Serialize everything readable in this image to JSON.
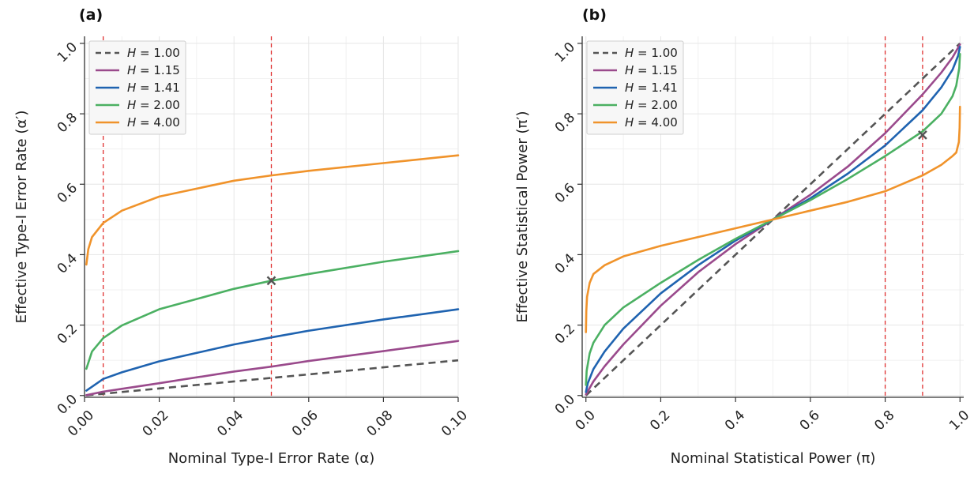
{
  "colors": {
    "H1": "#555555",
    "H115": "#9a4a8c",
    "H141": "#1f63b0",
    "H2": "#4bb062",
    "H4": "#f0932b",
    "refline": "#e03030",
    "marker": "#555555",
    "grid": "#e6e6e6"
  },
  "chart_data": [
    {
      "type": "line",
      "panel_label": "(a)",
      "xlabel": "Nominal Type-I Error Rate (α)",
      "ylabel": "Effective Type-I Error Rate (α′)",
      "xlim": [
        0.0,
        0.1
      ],
      "ylim": [
        -0.005,
        1.02
      ],
      "x_ticks": [
        0.0,
        0.02,
        0.04,
        0.06,
        0.08,
        0.1
      ],
      "x_tick_labels": [
        "0.00",
        "0.02",
        "0.04",
        "0.06",
        "0.08",
        "0.10"
      ],
      "y_ticks": [
        0.0,
        0.2,
        0.4,
        0.6,
        0.8,
        1.0
      ],
      "y_tick_labels": [
        "0.0",
        "0.2",
        "0.4",
        "0.6",
        "0.8",
        "1.0"
      ],
      "grid": true,
      "legend_position": "top-left",
      "series": [
        {
          "name": "H = 1.00",
          "h_value": "1.00",
          "style": "dashed",
          "color_key": "H1",
          "x": [
            0.0005,
            0.01,
            0.02,
            0.04,
            0.06,
            0.08,
            0.1
          ],
          "y": [
            0.0005,
            0.01,
            0.02,
            0.04,
            0.06,
            0.08,
            0.1
          ]
        },
        {
          "name": "H = 1.15",
          "h_value": "1.15",
          "style": "solid",
          "color_key": "H115",
          "x": [
            0.0005,
            0.005,
            0.01,
            0.02,
            0.04,
            0.05,
            0.06,
            0.08,
            0.1
          ],
          "y": [
            0.001,
            0.011,
            0.019,
            0.035,
            0.068,
            0.082,
            0.098,
            0.126,
            0.155
          ]
        },
        {
          "name": "H = 1.41",
          "h_value": "1.41",
          "style": "solid",
          "color_key": "H141",
          "x": [
            0.0005,
            0.005,
            0.01,
            0.02,
            0.04,
            0.05,
            0.06,
            0.08,
            0.1
          ],
          "y": [
            0.014,
            0.047,
            0.066,
            0.097,
            0.145,
            0.165,
            0.184,
            0.216,
            0.245
          ]
        },
        {
          "name": "H = 2.00",
          "h_value": "2.00",
          "style": "solid",
          "color_key": "H2",
          "x": [
            0.0005,
            0.002,
            0.005,
            0.01,
            0.02,
            0.04,
            0.05,
            0.06,
            0.08,
            0.1
          ],
          "y": [
            0.076,
            0.125,
            0.163,
            0.199,
            0.245,
            0.303,
            0.326,
            0.345,
            0.38,
            0.41
          ]
        },
        {
          "name": "H = 4.00",
          "h_value": "4.00",
          "style": "solid",
          "color_key": "H4",
          "x": [
            0.0005,
            0.001,
            0.002,
            0.005,
            0.01,
            0.02,
            0.04,
            0.05,
            0.06,
            0.08,
            0.1
          ],
          "y": [
            0.372,
            0.415,
            0.45,
            0.49,
            0.525,
            0.565,
            0.61,
            0.625,
            0.638,
            0.66,
            0.682
          ]
        }
      ],
      "reference_lines_x": [
        0.005,
        0.05
      ],
      "markers": [
        {
          "x": 0.05,
          "y": 0.326
        }
      ]
    },
    {
      "type": "line",
      "panel_label": "(b)",
      "xlabel": "Nominal Statistical Power (π)",
      "ylabel": "Effective Statistical Power (π′)",
      "xlim": [
        -0.01,
        1.01
      ],
      "ylim": [
        -0.005,
        1.02
      ],
      "x_ticks": [
        0.0,
        0.2,
        0.4,
        0.6,
        0.8,
        1.0
      ],
      "x_tick_labels": [
        "0.0",
        "0.2",
        "0.4",
        "0.6",
        "0.8",
        "1.0"
      ],
      "y_ticks": [
        0.0,
        0.2,
        0.4,
        0.6,
        0.8,
        1.0
      ],
      "y_tick_labels": [
        "0.0",
        "0.2",
        "0.4",
        "0.6",
        "0.8",
        "1.0"
      ],
      "grid": true,
      "legend_position": "top-left",
      "series": [
        {
          "name": "H = 1.00",
          "h_value": "1.00",
          "style": "dashed",
          "color_key": "H1",
          "x": [
            0.0,
            0.5,
            1.0
          ],
          "y": [
            0.0,
            0.5,
            1.0
          ]
        },
        {
          "name": "H = 1.15",
          "h_value": "1.15",
          "style": "solid",
          "color_key": "H115",
          "x": [
            0.0,
            0.02,
            0.05,
            0.1,
            0.2,
            0.3,
            0.4,
            0.5,
            0.6,
            0.7,
            0.8,
            0.9,
            0.95,
            0.98,
            1.0
          ],
          "y": [
            0.003,
            0.04,
            0.083,
            0.145,
            0.255,
            0.35,
            0.43,
            0.5,
            0.57,
            0.65,
            0.745,
            0.855,
            0.917,
            0.96,
            0.997
          ]
        },
        {
          "name": "H = 1.41",
          "h_value": "1.41",
          "style": "solid",
          "color_key": "H141",
          "x": [
            0.0,
            0.005,
            0.02,
            0.05,
            0.1,
            0.2,
            0.3,
            0.4,
            0.5,
            0.6,
            0.7,
            0.8,
            0.9,
            0.95,
            0.98,
            0.995,
            1.0
          ],
          "y": [
            0.01,
            0.035,
            0.075,
            0.125,
            0.19,
            0.29,
            0.37,
            0.44,
            0.5,
            0.56,
            0.63,
            0.71,
            0.81,
            0.875,
            0.925,
            0.965,
            0.99
          ]
        },
        {
          "name": "H = 2.00",
          "h_value": "2.00",
          "style": "solid",
          "color_key": "H2",
          "x": [
            0.0,
            0.002,
            0.01,
            0.02,
            0.05,
            0.1,
            0.2,
            0.3,
            0.4,
            0.5,
            0.6,
            0.7,
            0.8,
            0.9,
            0.95,
            0.98,
            0.99,
            0.998,
            1.0
          ],
          "y": [
            0.03,
            0.07,
            0.12,
            0.15,
            0.2,
            0.25,
            0.32,
            0.385,
            0.445,
            0.5,
            0.555,
            0.615,
            0.68,
            0.75,
            0.8,
            0.85,
            0.88,
            0.93,
            0.97
          ]
        },
        {
          "name": "H = 4.00",
          "h_value": "4.00",
          "style": "solid",
          "color_key": "H4",
          "x": [
            0.0,
            0.001,
            0.003,
            0.01,
            0.02,
            0.05,
            0.1,
            0.2,
            0.3,
            0.4,
            0.5,
            0.6,
            0.7,
            0.8,
            0.9,
            0.95,
            0.98,
            0.99,
            0.997,
            0.999,
            1.0
          ],
          "y": [
            0.18,
            0.24,
            0.28,
            0.32,
            0.345,
            0.37,
            0.395,
            0.425,
            0.45,
            0.475,
            0.5,
            0.525,
            0.55,
            0.58,
            0.625,
            0.655,
            0.68,
            0.69,
            0.72,
            0.76,
            0.82
          ]
        }
      ],
      "reference_lines_x": [
        0.8,
        0.9
      ],
      "markers": [
        {
          "x": 0.9,
          "y": 0.74
        }
      ]
    }
  ]
}
